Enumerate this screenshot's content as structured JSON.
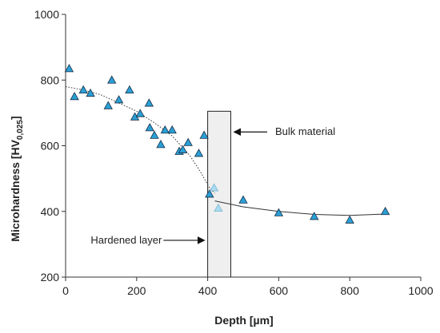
{
  "chart_data": {
    "type": "scatter",
    "xlabel": "Depth [µm]",
    "ylabel": {
      "main": "Microhardness [HV",
      "sub": "0,025",
      "close": "]"
    },
    "xlim": [
      0,
      1000
    ],
    "ylim": [
      200,
      1000
    ],
    "xticks": [
      "0",
      "200",
      "400",
      "600",
      "800",
      "1000"
    ],
    "yticks": [
      "200",
      "400",
      "600",
      "800",
      "1000"
    ],
    "grid": false,
    "marker": "triangle",
    "colors": {
      "marker": "#2a9fd6",
      "marker_light": "#a9dcf2",
      "marker_edge": "#1a2e44",
      "box_fill": "#efefef",
      "axis": "#333333"
    },
    "points": [
      {
        "x": 10,
        "y": 835
      },
      {
        "x": 25,
        "y": 750
      },
      {
        "x": 50,
        "y": 770
      },
      {
        "x": 70,
        "y": 760
      },
      {
        "x": 120,
        "y": 722
      },
      {
        "x": 130,
        "y": 800
      },
      {
        "x": 150,
        "y": 740
      },
      {
        "x": 180,
        "y": 770
      },
      {
        "x": 195,
        "y": 688
      },
      {
        "x": 210,
        "y": 698
      },
      {
        "x": 235,
        "y": 730
      },
      {
        "x": 237,
        "y": 655
      },
      {
        "x": 250,
        "y": 632
      },
      {
        "x": 268,
        "y": 604
      },
      {
        "x": 280,
        "y": 648
      },
      {
        "x": 300,
        "y": 648
      },
      {
        "x": 320,
        "y": 583
      },
      {
        "x": 330,
        "y": 588
      },
      {
        "x": 345,
        "y": 610
      },
      {
        "x": 375,
        "y": 577
      },
      {
        "x": 390,
        "y": 632
      },
      {
        "x": 405,
        "y": 453
      },
      {
        "x": 418,
        "y": 472,
        "light": true
      },
      {
        "x": 430,
        "y": 410,
        "light": true
      },
      {
        "x": 500,
        "y": 435
      },
      {
        "x": 600,
        "y": 396
      },
      {
        "x": 700,
        "y": 385
      },
      {
        "x": 800,
        "y": 374
      },
      {
        "x": 900,
        "y": 400
      }
    ],
    "trend_hardened": [
      [
        0,
        780
      ],
      [
        50,
        770
      ],
      [
        100,
        755
      ],
      [
        150,
        730
      ],
      [
        200,
        705
      ],
      [
        250,
        670
      ],
      [
        300,
        630
      ],
      [
        350,
        570
      ],
      [
        380,
        520
      ],
      [
        405,
        472
      ],
      [
        420,
        455
      ]
    ],
    "trend_bulk": [
      [
        420,
        432
      ],
      [
        500,
        414
      ],
      [
        600,
        400
      ],
      [
        700,
        391
      ],
      [
        800,
        388
      ],
      [
        900,
        392
      ]
    ],
    "region": {
      "x0": 400,
      "x1": 465,
      "y0": 200,
      "y1": 705
    },
    "annotations": {
      "bulk": {
        "text": "Bulk material",
        "arrow_from": [
          590,
          642
        ],
        "arrow_to": [
          470,
          642
        ]
      },
      "hardened": {
        "text": "Hardened layer",
        "arrow_from": [
          280,
          312
        ],
        "arrow_to": [
          395,
          312
        ]
      }
    }
  }
}
